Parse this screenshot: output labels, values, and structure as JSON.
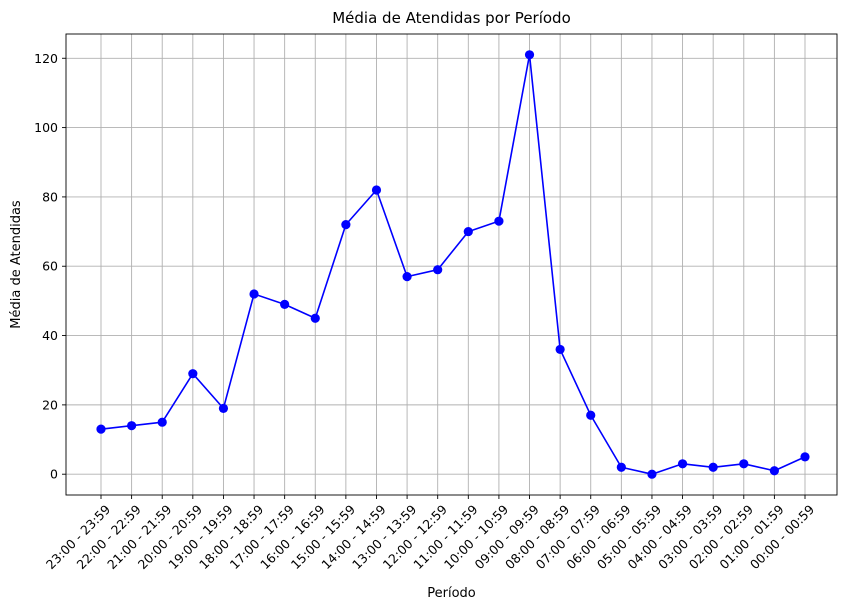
{
  "chart_data": {
    "type": "line",
    "title": "Média de Atendidas por Período",
    "xlabel": "Período",
    "ylabel": "Média de Atendidas",
    "categories": [
      "23:00 - 23:59",
      "22:00 - 22:59",
      "21:00 - 21:59",
      "20:00 - 20:59",
      "19:00 - 19:59",
      "18:00 - 18:59",
      "17:00 - 17:59",
      "16:00 - 16:59",
      "15:00 - 15:59",
      "14:00 - 14:59",
      "13:00 - 13:59",
      "12:00 - 12:59",
      "11:00 - 11:59",
      "10:00 - 10:59",
      "09:00 - 09:59",
      "08:00 - 08:59",
      "07:00 - 07:59",
      "06:00 - 06:59",
      "05:00 - 05:59",
      "04:00 - 04:59",
      "03:00 - 03:59",
      "02:00 - 02:59",
      "01:00 - 01:59",
      "00:00 - 00:59"
    ],
    "series": [
      {
        "values": [
          13,
          14,
          15,
          29,
          19,
          52,
          49,
          45,
          72,
          82,
          57,
          59,
          70,
          73,
          121,
          36,
          17,
          2,
          0,
          3,
          2,
          3,
          1,
          5
        ]
      }
    ],
    "ylim": [
      -6,
      127
    ],
    "yticks": [
      0,
      20,
      40,
      60,
      80,
      100,
      120
    ],
    "grid": true,
    "line_color": "#0000ff",
    "marker": "circle"
  }
}
